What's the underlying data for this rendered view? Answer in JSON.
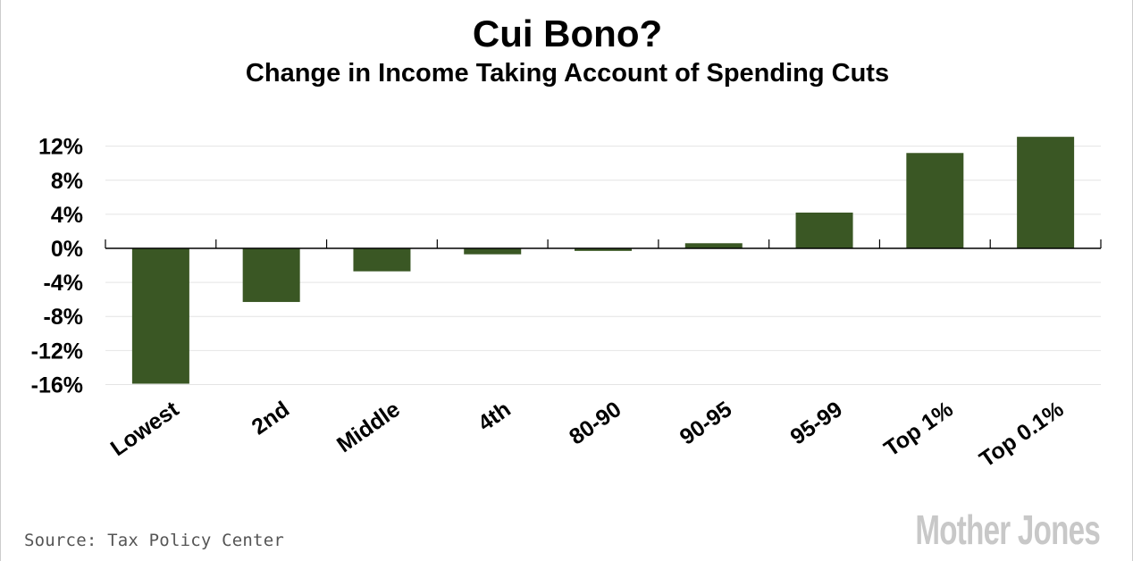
{
  "chart_data": {
    "type": "bar",
    "title": "Cui Bono?",
    "subtitle": "Change in Income Taking Account of Spending Cuts",
    "categories": [
      "Lowest",
      "2nd",
      "Middle",
      "4th",
      "80-90",
      "90-95",
      "95-99",
      "Top 1%",
      "Top 0.1%"
    ],
    "values": [
      -15.9,
      -6.3,
      -2.7,
      -0.7,
      -0.3,
      0.6,
      4.2,
      11.2,
      13.1
    ],
    "yticks": [
      12,
      8,
      4,
      0,
      -4,
      -8,
      -12,
      -16
    ],
    "ytick_labels": [
      "12%",
      "8%",
      "4%",
      "0%",
      "-4%",
      "-8%",
      "-12%",
      "-16%"
    ],
    "ylim": [
      -16,
      12
    ],
    "xlabel": "",
    "ylabel": "",
    "grid": true,
    "bar_color": "#3a5724"
  },
  "source": "Source: Tax Policy Center",
  "logo": "Mother Jones"
}
